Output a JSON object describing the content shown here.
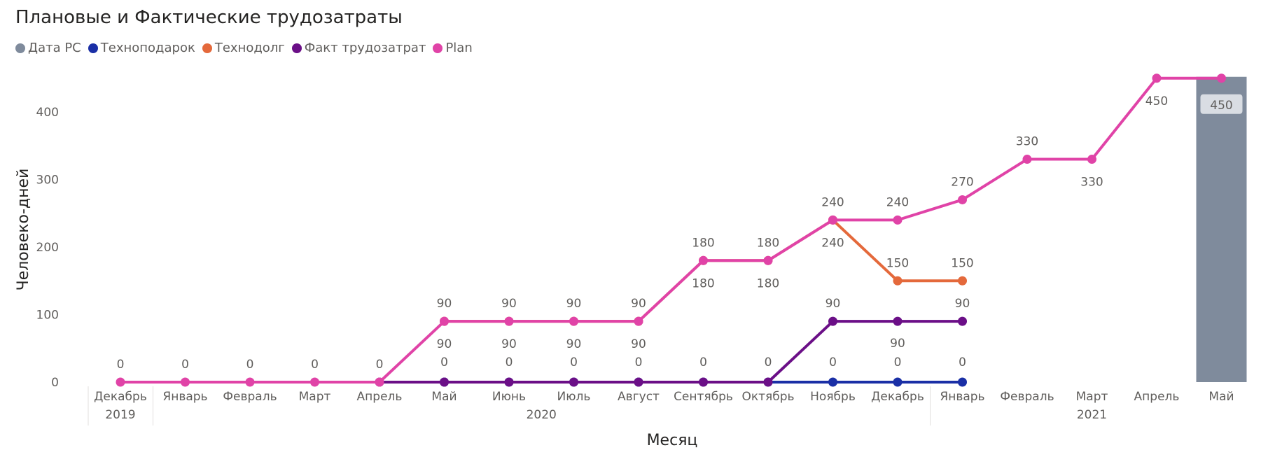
{
  "title": "Плановые и Фактические трудозатраты",
  "legend": [
    {
      "name": "Дата РС",
      "color": "#7f8b9c"
    },
    {
      "name": "Технoподарок",
      "color": "#1a2fa6"
    },
    {
      "name": "Технодолг",
      "color": "#e4693b"
    },
    {
      "name": "Факт трудозатрат",
      "color": "#6b0f87"
    },
    {
      "name": "Plan",
      "color": "#e043a7"
    }
  ],
  "chart_data": {
    "type": "line",
    "title": "Плановые и Фактические трудозатраты",
    "xlabel": "Месяц",
    "ylabel": "Человеко-дней",
    "ylim": [
      0,
      450
    ],
    "yticks": [
      "0",
      "100",
      "200",
      "300",
      "400"
    ],
    "categories": [
      "Декабрь",
      "Январь",
      "Февраль",
      "Март",
      "Апрель",
      "Май",
      "Июнь",
      "Июль",
      "Август",
      "Сентябрь",
      "Октябрь",
      "Ноябрь",
      "Декабрь",
      "Январь",
      "Февраль",
      "Март",
      "Апрель",
      "Май"
    ],
    "years": [
      {
        "label": "2019",
        "from": 0,
        "to": 0
      },
      {
        "label": "2020",
        "from": 1,
        "to": 12
      },
      {
        "label": "2021",
        "from": 13,
        "to": 17
      }
    ],
    "highlight": {
      "series": "Дата РС",
      "category_index": 17,
      "value": 450,
      "label": "450",
      "color": "#7f8b9c"
    },
    "grid": false,
    "legend_position": "top-left",
    "series": [
      {
        "name": "Технoподарок",
        "color": "#1a2fa6",
        "values": [
          null,
          null,
          null,
          null,
          null,
          0,
          0,
          0,
          0,
          0,
          0,
          0,
          0,
          0,
          null,
          null,
          null,
          null
        ]
      },
      {
        "name": "Технодолг",
        "color": "#e4693b",
        "values": [
          null,
          null,
          null,
          null,
          null,
          90,
          90,
          90,
          90,
          180,
          180,
          240,
          150,
          150,
          null,
          null,
          null,
          null
        ]
      },
      {
        "name": "Факт трудозатрат",
        "color": "#6b0f87",
        "values": [
          null,
          null,
          null,
          null,
          0,
          0,
          0,
          0,
          0,
          0,
          0,
          90,
          90,
          90,
          null,
          null,
          null,
          null
        ]
      },
      {
        "name": "Plan",
        "color": "#e043a7",
        "values": [
          0,
          0,
          0,
          0,
          0,
          90,
          90,
          90,
          90,
          180,
          180,
          240,
          240,
          270,
          330,
          330,
          450,
          450
        ]
      }
    ],
    "data_labels": [
      {
        "i": 0,
        "text": "0",
        "pos": "above"
      },
      {
        "i": 1,
        "text": "0",
        "pos": "above"
      },
      {
        "i": 2,
        "text": "0",
        "pos": "above"
      },
      {
        "i": 3,
        "text": "0",
        "pos": "above"
      },
      {
        "i": 4,
        "text": "0",
        "pos": "above"
      },
      {
        "i": 5,
        "text": "90",
        "pos": "above"
      },
      {
        "i": 5,
        "text": "90",
        "pos": "below"
      },
      {
        "i": 5,
        "text": "0",
        "pos": "base"
      },
      {
        "i": 6,
        "text": "90",
        "pos": "above"
      },
      {
        "i": 6,
        "text": "90",
        "pos": "below"
      },
      {
        "i": 6,
        "text": "0",
        "pos": "base"
      },
      {
        "i": 7,
        "text": "90",
        "pos": "above"
      },
      {
        "i": 7,
        "text": "90",
        "pos": "below"
      },
      {
        "i": 7,
        "text": "0",
        "pos": "base"
      },
      {
        "i": 8,
        "text": "90",
        "pos": "above"
      },
      {
        "i": 8,
        "text": "90",
        "pos": "below"
      },
      {
        "i": 8,
        "text": "0",
        "pos": "base"
      },
      {
        "i": 9,
        "text": "180",
        "pos": "above"
      },
      {
        "i": 9,
        "text": "180",
        "pos": "below"
      },
      {
        "i": 9,
        "text": "0",
        "pos": "base"
      },
      {
        "i": 10,
        "text": "180",
        "pos": "above"
      },
      {
        "i": 10,
        "text": "180",
        "pos": "below"
      },
      {
        "i": 10,
        "text": "0",
        "pos": "base"
      },
      {
        "i": 11,
        "text": "240",
        "pos": "above"
      },
      {
        "i": 11,
        "text": "240",
        "pos": "below"
      },
      {
        "i": 11,
        "text": "90",
        "pos": "above90"
      },
      {
        "i": 11,
        "text": "0",
        "pos": "base"
      },
      {
        "i": 12,
        "text": "240",
        "pos": "above"
      },
      {
        "i": 12,
        "text": "150",
        "pos": "above150"
      },
      {
        "i": 12,
        "text": "90",
        "pos": "below90"
      },
      {
        "i": 12,
        "text": "0",
        "pos": "base"
      },
      {
        "i": 13,
        "text": "270",
        "pos": "above"
      },
      {
        "i": 13,
        "text": "150",
        "pos": "above150"
      },
      {
        "i": 13,
        "text": "90",
        "pos": "above90"
      },
      {
        "i": 13,
        "text": "0",
        "pos": "base"
      },
      {
        "i": 14,
        "text": "330",
        "pos": "above"
      },
      {
        "i": 15,
        "text": "330",
        "pos": "below"
      },
      {
        "i": 16,
        "text": "450",
        "pos": "below"
      }
    ]
  }
}
